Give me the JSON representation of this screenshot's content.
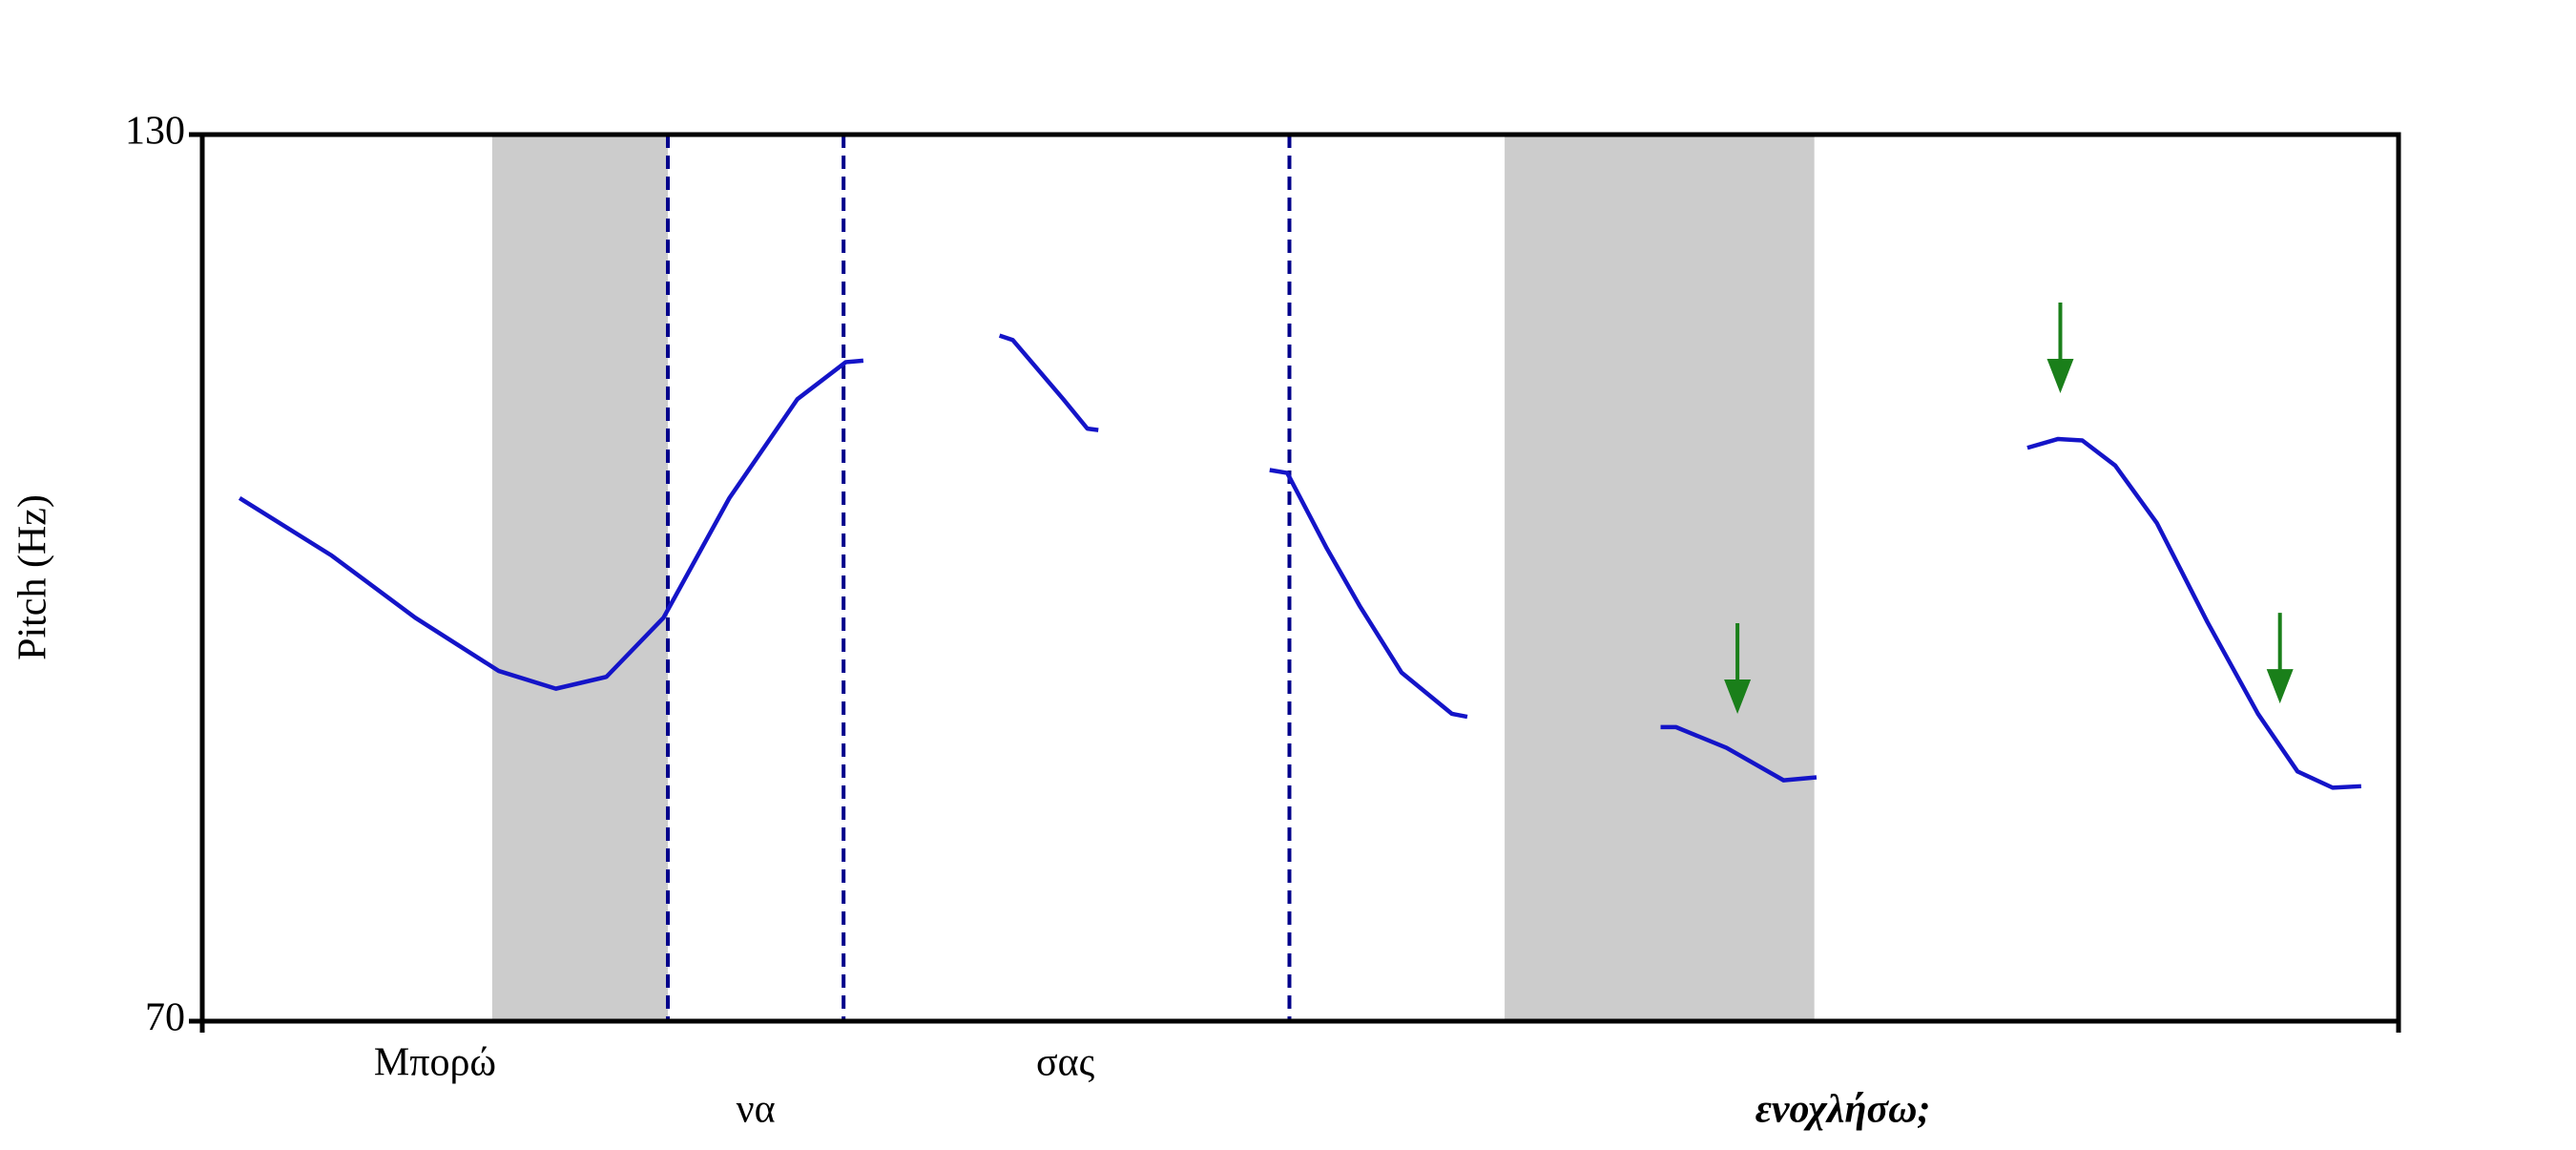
{
  "chart_data": {
    "type": "line",
    "y_label": "Pitch (Hz)",
    "ylim": [
      70,
      130
    ],
    "yticks": [
      70,
      130
    ],
    "xlim": [
      0,
      1
    ],
    "color": "#1414c8",
    "x": [
      0.017,
      0.059,
      0.097,
      0.135,
      0.161,
      0.184,
      0.21,
      0.24,
      0.271,
      0.293,
      0.301,
      null,
      0.363,
      0.369,
      0.392,
      0.403,
      0.408,
      null,
      0.486,
      0.494,
      0.512,
      0.527,
      0.546,
      0.569,
      0.576,
      null,
      0.664,
      0.671,
      0.694,
      0.72,
      0.735,
      null,
      0.831,
      0.845,
      0.856,
      0.871,
      0.89,
      0.913,
      0.936,
      0.954,
      0.97,
      0.983
    ],
    "values": [
      105.4,
      101.5,
      97.3,
      93.7,
      92.5,
      93.3,
      97.3,
      105.4,
      112.1,
      114.6,
      114.7,
      null,
      116.4,
      116.1,
      112.1,
      110.1,
      110.0,
      null,
      107.3,
      107.1,
      102.0,
      98.1,
      93.6,
      90.8,
      90.6,
      null,
      89.9,
      89.9,
      88.5,
      86.3,
      86.5,
      null,
      108.8,
      109.4,
      109.3,
      107.6,
      103.7,
      97.0,
      90.8,
      86.9,
      85.8,
      85.9
    ],
    "shaded_spans": [
      [
        0.132,
        0.212
      ],
      [
        0.593,
        0.734
      ]
    ],
    "shade_color": "#cccccc",
    "boundaries": [
      0.212,
      0.292,
      0.495
    ],
    "boundary_color": "#00008b",
    "arrows": {
      "color": "#1a7f1a",
      "x": [
        0.699,
        0.846,
        0.946
      ],
      "y": [
        90.8,
        112.5,
        91.5
      ]
    },
    "words": [
      {
        "text": "Μπορώ",
        "x": 0.106
      },
      {
        "text": "να",
        "x": 0.252
      },
      {
        "text": "σας",
        "x": 0.393
      },
      {
        "text": "ενοχλήσω;",
        "x": 0.747,
        "style": "bold-italic"
      }
    ]
  }
}
